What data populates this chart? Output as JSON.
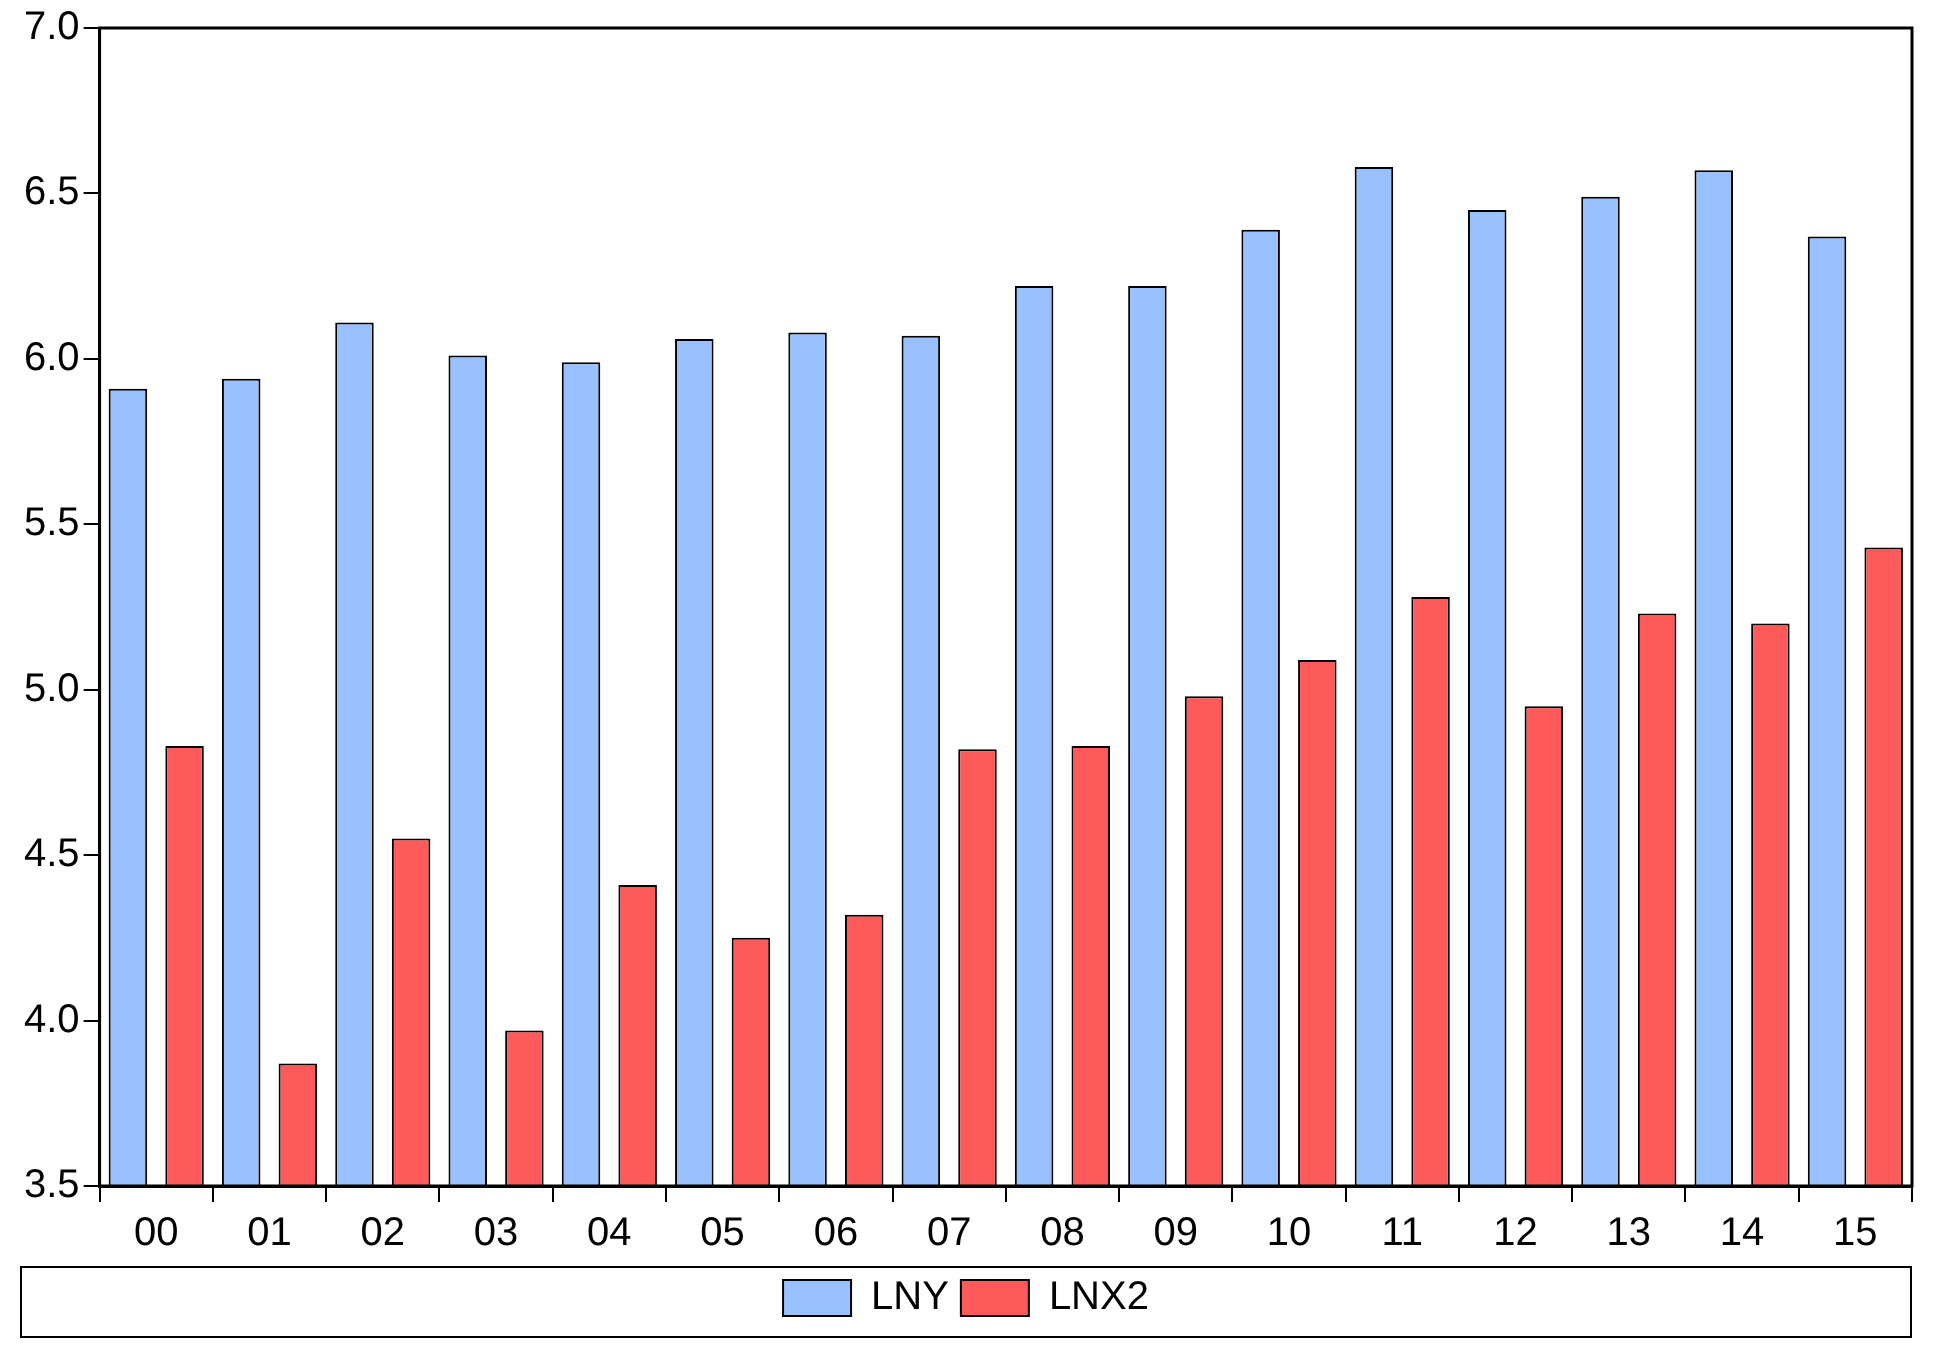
{
  "chart_data": {
    "type": "bar",
    "categories": [
      "00",
      "01",
      "02",
      "03",
      "04",
      "05",
      "06",
      "07",
      "08",
      "09",
      "10",
      "11",
      "12",
      "13",
      "14",
      "15"
    ],
    "series": [
      {
        "name": "LNY",
        "color": "#99c0ff",
        "values": [
          5.91,
          5.94,
          6.11,
          6.01,
          5.99,
          6.06,
          6.08,
          6.07,
          6.22,
          6.22,
          6.39,
          6.58,
          6.45,
          6.49,
          6.57,
          6.37
        ]
      },
      {
        "name": "LNX2",
        "color": "#ff5a5a",
        "values": [
          4.83,
          3.87,
          4.55,
          3.97,
          4.41,
          4.25,
          4.32,
          4.82,
          4.83,
          4.98,
          5.09,
          5.28,
          4.95,
          5.23,
          5.2,
          5.43
        ]
      }
    ],
    "ylim": [
      3.5,
      7.0
    ],
    "yticks": [
      {
        "value": 3.5,
        "label": "3.5"
      },
      {
        "value": 4.0,
        "label": "4.0"
      },
      {
        "value": 4.5,
        "label": "4.5"
      },
      {
        "value": 5.0,
        "label": "5.0"
      },
      {
        "value": 5.5,
        "label": "5.5"
      },
      {
        "value": 6.0,
        "label": "6.0"
      },
      {
        "value": 6.5,
        "label": "6.5"
      },
      {
        "value": 7.0,
        "label": "7.0"
      }
    ],
    "grid": false,
    "legend": "bottom"
  }
}
